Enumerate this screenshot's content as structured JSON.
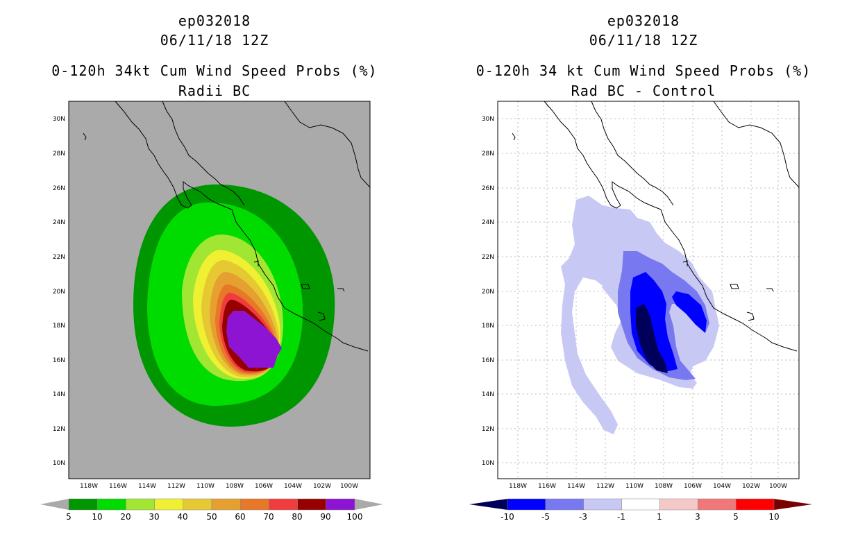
{
  "left": {
    "storm_id": "ep032018",
    "datetime": "06/11/18 12Z",
    "title": "0-120h 34kt Cum Wind Speed Probs (%)",
    "subtitle": "Radii BC",
    "colorbar": {
      "labels": [
        "5",
        "10",
        "20",
        "30",
        "40",
        "50",
        "60",
        "70",
        "80",
        "90",
        "100"
      ],
      "colors": [
        "#009600",
        "#00dc00",
        "#a0e632",
        "#f0f032",
        "#e6c832",
        "#e6a032",
        "#e67828",
        "#f03c3c",
        "#960000",
        "#8c14d2"
      ]
    }
  },
  "right": {
    "storm_id": "ep032018",
    "datetime": "06/11/18 12Z",
    "title": "0-120h 34 kt Cum Wind Speed Probs (%)",
    "subtitle": "Rad BC - Control",
    "colorbar": {
      "labels": [
        "-10",
        "-5",
        "-3",
        "-1",
        "1",
        "3",
        "5",
        "10"
      ],
      "colors": [
        "#00005a",
        "#0000ff",
        "#7878f0",
        "#c8c8f5",
        "#ffffff",
        "#f5c8c8",
        "#f07878",
        "#ff0000",
        "#780000"
      ]
    }
  },
  "axes": {
    "lat_labels": [
      "30N",
      "28N",
      "26N",
      "24N",
      "22N",
      "20N",
      "18N",
      "16N",
      "14N",
      "12N",
      "10N"
    ],
    "lon_labels": [
      "118W",
      "116W",
      "114W",
      "112W",
      "110W",
      "108W",
      "106W",
      "104W",
      "102W",
      "100W"
    ]
  }
}
